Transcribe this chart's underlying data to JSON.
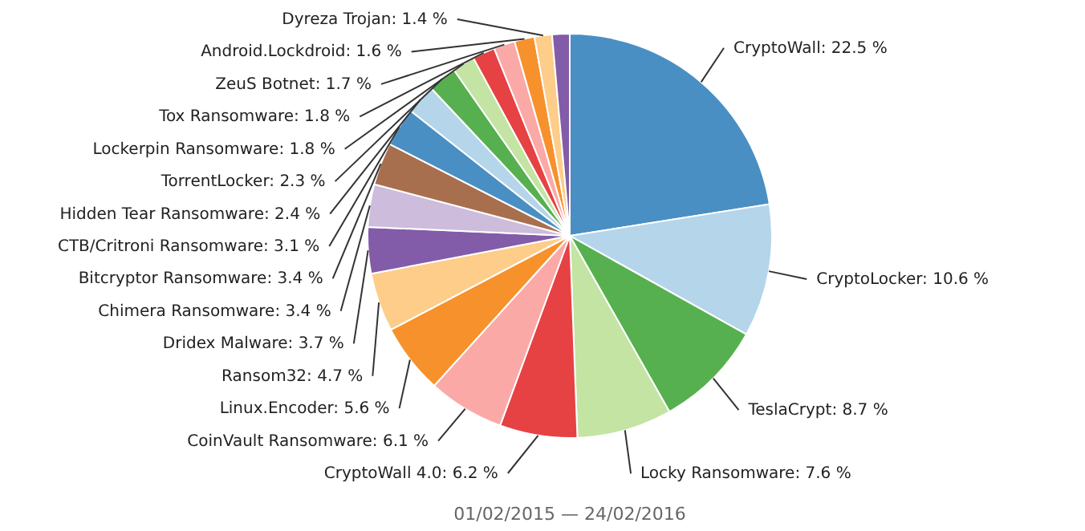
{
  "chart_data": {
    "type": "pie",
    "title": "01/02/2015 — 24/02/2016",
    "categories": [
      "CryptoWall",
      "CryptoLocker",
      "TeslaCrypt",
      "Locky Ransomware",
      "CryptoWall 4.0",
      "CoinVault Ransomware",
      "Linux.Encoder",
      "Ransom32",
      "Dridex Malware",
      "Chimera Ransomware",
      "Bitcryptor Ransomware",
      "CTB/Critroni Ransomware",
      "Hidden Tear Ransomware",
      "TorrentLocker",
      "Lockerpin Ransomware",
      "Tox Ransomware",
      "ZeuS Botnet",
      "Android.Lockdroid",
      "Dyreza Trojan",
      null
    ],
    "values": [
      22.5,
      10.6,
      8.7,
      7.6,
      6.2,
      6.1,
      5.6,
      4.7,
      3.7,
      3.4,
      3.4,
      3.1,
      2.4,
      2.3,
      1.8,
      1.8,
      1.7,
      1.6,
      1.4,
      1.4
    ],
    "value_labels": [
      "22.5 %",
      "10.6 %",
      "8.7 %",
      "7.6 %",
      "6.2 %",
      "6.1 %",
      "5.6 %",
      "4.7 %",
      "3.7 %",
      "3.4 %",
      "3.4 %",
      "3.1 %",
      "2.4 %",
      "2.3 %",
      "1.8 %",
      "1.8 %",
      "1.7 %",
      "1.6 %",
      "1.4 %",
      null
    ],
    "colors": [
      "#4a8fc3",
      "#b4d5ea",
      "#57b04f",
      "#c3e4a3",
      "#e64143",
      "#fba9a7",
      "#f7912c",
      "#fdcd89",
      "#825ca8",
      "#cdbcdc",
      "#a86f4f",
      "#4a8fc3",
      "#b4d5ea",
      "#57b04f",
      "#c3e4a3",
      "#e64143",
      "#fba9a7",
      "#f7912c",
      "#fdcd89",
      "#825ca8"
    ]
  }
}
